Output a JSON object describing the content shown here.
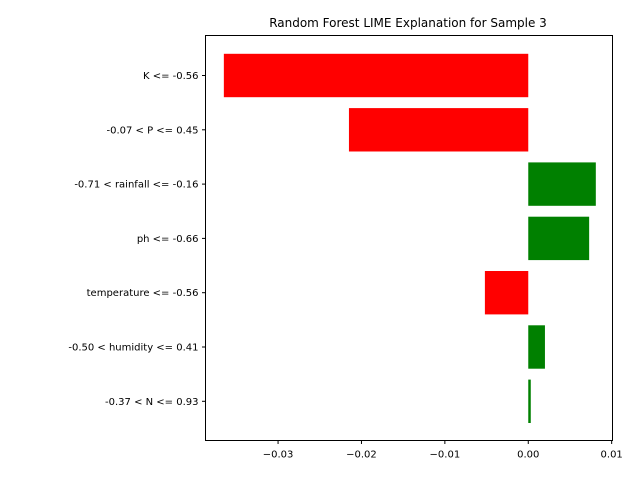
{
  "chart_data": {
    "type": "bar",
    "orientation": "horizontal",
    "title": "Random Forest LIME Explanation for Sample 3",
    "xlabel": "",
    "ylabel": "",
    "categories": [
      "K <= -0.56",
      "-0.07 < P <= 0.45",
      "-0.71 < rainfall <= -0.16",
      "ph <= -0.66",
      "temperature <= -0.56",
      "-0.50 < humidity <= 0.41",
      "-0.37 < N <= 0.93"
    ],
    "values": [
      -0.0365,
      -0.0215,
      0.0081,
      0.0073,
      -0.0052,
      0.002,
      0.0003
    ],
    "xlim": [
      -0.0387,
      0.0101
    ],
    "xticks": [
      -0.03,
      -0.02,
      -0.01,
      0.0,
      0.01
    ],
    "xtick_labels": [
      "−0.03",
      "−0.02",
      "−0.01",
      "0.00",
      "0.01"
    ],
    "grid": false,
    "legend": "none",
    "colors": {
      "positive": "#008000",
      "negative": "#ff0000",
      "axis": "#000000"
    }
  }
}
